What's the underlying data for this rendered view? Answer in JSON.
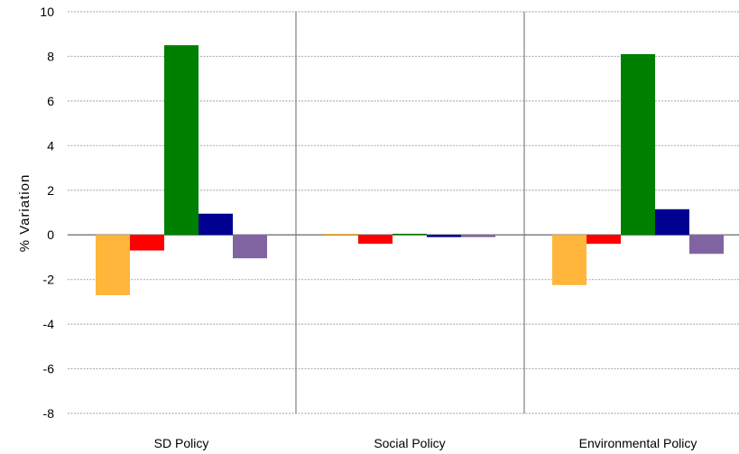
{
  "chart_data": {
    "type": "bar",
    "title": "",
    "xlabel": "",
    "ylabel": "% Variation",
    "ylim": [
      -8,
      10
    ],
    "yticks": [
      10,
      8,
      6,
      4,
      2,
      0,
      -2,
      -4,
      -6,
      -8
    ],
    "grid": true,
    "categories": [
      "SD Policy",
      "Social Policy",
      "Environmental Policy"
    ],
    "series": [
      {
        "color": "#FFB63A",
        "values": [
          -2.7,
          0.05,
          -2.25
        ]
      },
      {
        "color": "#FF0000",
        "values": [
          -0.7,
          -0.4,
          -0.4
        ]
      },
      {
        "color": "#008000",
        "values": [
          8.5,
          0.05,
          8.1
        ]
      },
      {
        "color": "#000090",
        "values": [
          0.95,
          -0.1,
          1.15
        ]
      },
      {
        "color": "#8064A2",
        "values": [
          -1.05,
          -0.1,
          -0.85
        ]
      }
    ]
  }
}
